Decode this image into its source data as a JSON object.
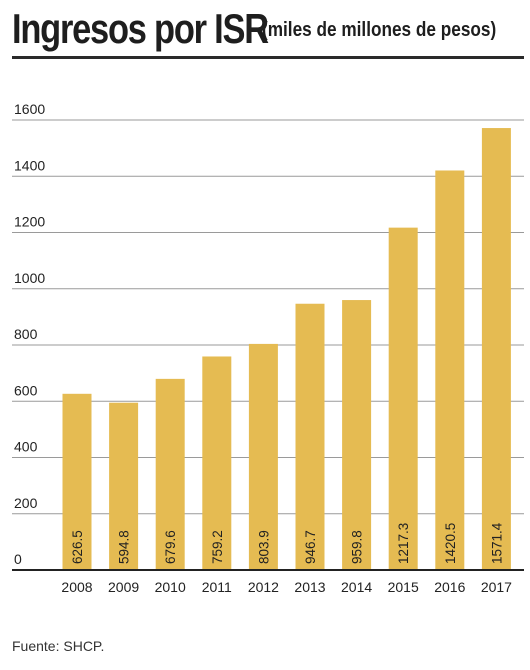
{
  "header": {
    "title": "Ingresos por ISR",
    "subtitle": "(miles de millones de pesos)"
  },
  "source": "Fuente: SHCP.",
  "colors": {
    "bar": "#e5bb52",
    "grid": "#9a9a9a",
    "axis": "#222222",
    "text": "#222222"
  },
  "chart_data": {
    "type": "bar",
    "categories": [
      "2008",
      "2009",
      "2010",
      "2011",
      "2012",
      "2013",
      "2014",
      "2015",
      "2016",
      "2017"
    ],
    "values": [
      626.5,
      594.8,
      679.6,
      759.2,
      803.9,
      946.7,
      959.8,
      1217.3,
      1420.5,
      1571.4
    ],
    "value_labels": [
      "626.5",
      "594.8",
      "679.6",
      "759.2",
      "803.9",
      "946.7",
      "959.8",
      "1217.3",
      "1420.5",
      "1571.4"
    ],
    "yticks": [
      0,
      200,
      400,
      600,
      800,
      1000,
      1200,
      1400,
      1600
    ],
    "ylim": [
      0,
      1600
    ],
    "title": "Ingresos por ISR",
    "xlabel": "",
    "ylabel": "",
    "grid": true,
    "legend": "none"
  }
}
